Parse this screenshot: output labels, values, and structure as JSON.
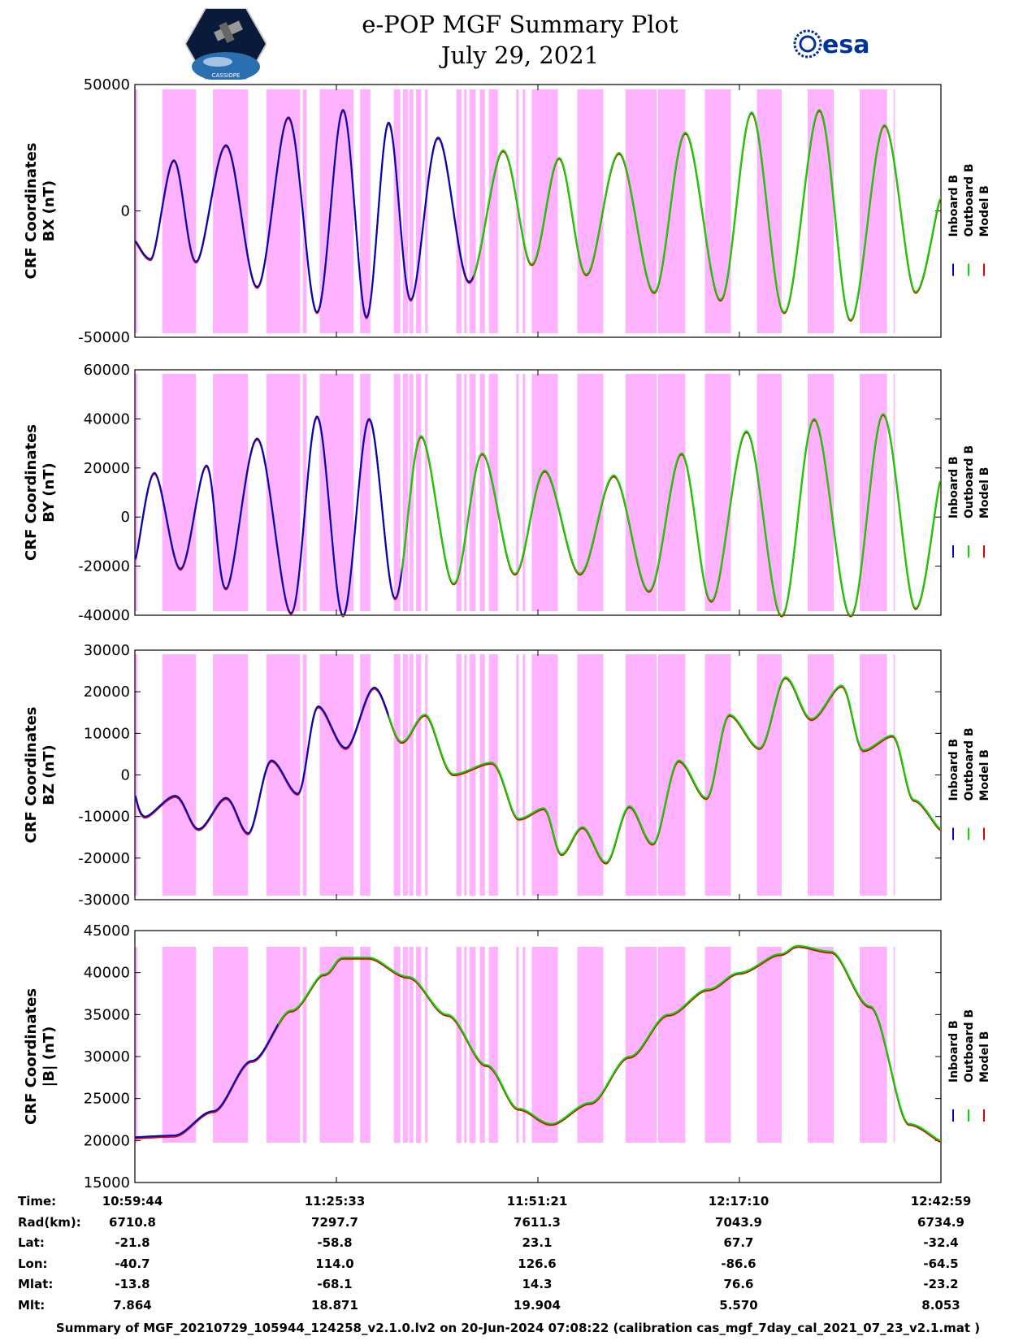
{
  "header": {
    "title_line1": "e-POP MGF Summary Plot",
    "title_line2": "July 29, 2021",
    "left_logo_text": "CASSIOPE",
    "right_logo_text": "esa"
  },
  "colors": {
    "inboard": "#0000cc",
    "outboard": "#00dd00",
    "model": "#dd0000",
    "shade": "#ffb3ff"
  },
  "legend": [
    "Inboard B",
    "Outboard B",
    "Model B"
  ],
  "chart_data": [
    {
      "type": "line",
      "title": "",
      "ylabel_line1": "CRF Coordinates",
      "ylabel_line2": "BX (nT)",
      "ylim": [
        -50000,
        50000
      ],
      "yticks": [
        -50000,
        0,
        50000
      ],
      "ytick_labels": [
        "-50000",
        "0",
        "50000"
      ],
      "xlim": [
        0,
        6194
      ],
      "inboard_end": 2600,
      "series": [
        {
          "name": "Outboard B",
          "x": [
            0,
            120,
            300,
            470,
            700,
            940,
            1180,
            1400,
            1600,
            1780,
            1950,
            2120,
            2330,
            2570,
            2830,
            3050,
            3260,
            3470,
            3720,
            3990,
            4230,
            4500,
            4740,
            4990,
            5260,
            5500,
            5760,
            6000,
            6194
          ],
          "y": [
            -12000,
            -19000,
            20000,
            -20000,
            26000,
            -30000,
            37000,
            -40000,
            40000,
            -42000,
            35000,
            -35000,
            29000,
            -28000,
            24000,
            -21000,
            21000,
            -25000,
            23000,
            -32000,
            31000,
            -35000,
            39000,
            -40000,
            40000,
            -43000,
            34000,
            -32000,
            5000
          ]
        }
      ]
    },
    {
      "type": "line",
      "title": "",
      "ylabel_line1": "CRF Coordinates",
      "ylabel_line2": "BY (nT)",
      "ylim": [
        -40000,
        60000
      ],
      "yticks": [
        -40000,
        -20000,
        0,
        20000,
        40000,
        60000
      ],
      "ytick_labels": [
        "-40000",
        "-20000",
        "0",
        "20000",
        "40000",
        "60000"
      ],
      "xlim": [
        0,
        6194
      ],
      "inboard_end": 2050,
      "series": [
        {
          "name": "Outboard B",
          "x": [
            0,
            150,
            350,
            550,
            700,
            940,
            1200,
            1400,
            1600,
            1800,
            2000,
            2200,
            2450,
            2670,
            2920,
            3150,
            3420,
            3680,
            3950,
            4200,
            4430,
            4700,
            4970,
            5220,
            5500,
            5750,
            6000,
            6194
          ],
          "y": [
            -17000,
            18000,
            -21000,
            21000,
            -29000,
            32000,
            -39000,
            41000,
            -40000,
            40000,
            -33000,
            33000,
            -27000,
            26000,
            -23000,
            19000,
            -23000,
            17000,
            -30000,
            26000,
            -34000,
            35000,
            -40000,
            40000,
            -40000,
            42000,
            -37000,
            15000
          ]
        }
      ]
    },
    {
      "type": "line",
      "title": "",
      "ylabel_line1": "CRF Coordinates",
      "ylabel_line2": "BZ (nT)",
      "ylim": [
        -30000,
        30000
      ],
      "yticks": [
        -30000,
        -20000,
        -10000,
        0,
        10000,
        20000,
        30000
      ],
      "ytick_labels": [
        "-30000",
        "-20000",
        "-10000",
        "0",
        "10000",
        "20000",
        "30000"
      ],
      "xlim": [
        0,
        6194
      ],
      "inboard_end": 1950,
      "series": [
        {
          "name": "Outboard B",
          "x": [
            0,
            80,
            310,
            490,
            700,
            870,
            1050,
            1250,
            1410,
            1620,
            1840,
            2050,
            2230,
            2450,
            2740,
            2950,
            3140,
            3280,
            3440,
            3620,
            3800,
            3980,
            4180,
            4390,
            4570,
            4800,
            5000,
            5200,
            5430,
            5600,
            5820,
            5990,
            6194
          ],
          "y": [
            -5000,
            -10000,
            -5000,
            -13000,
            -5500,
            -14000,
            3500,
            -4500,
            16500,
            6500,
            21000,
            8000,
            14500,
            200,
            3000,
            -10500,
            -8000,
            -19000,
            -12500,
            -21000,
            -7500,
            -16500,
            3500,
            -5500,
            14500,
            6500,
            23500,
            13500,
            21500,
            6000,
            9500,
            -6000,
            -13000
          ]
        }
      ]
    },
    {
      "type": "line",
      "title": "",
      "ylabel_line1": "CRF Coordinates",
      "ylabel_line2": "|B| (nT)",
      "ylim": [
        15000,
        45000
      ],
      "yticks": [
        15000,
        20000,
        25000,
        30000,
        35000,
        40000,
        45000
      ],
      "ytick_labels": [
        "15000",
        "20000",
        "25000",
        "30000",
        "35000",
        "40000",
        "45000"
      ],
      "xlim": [
        0,
        6194
      ],
      "inboard_end": 1100,
      "series": [
        {
          "name": "Outboard B",
          "x": [
            0,
            300,
            600,
            900,
            1200,
            1450,
            1600,
            1800,
            2100,
            2400,
            2700,
            2950,
            3200,
            3500,
            3800,
            4100,
            4400,
            4650,
            4950,
            5100,
            5350,
            5650,
            5950,
            6194
          ],
          "y": [
            20400,
            20600,
            23500,
            29500,
            35500,
            39800,
            41800,
            41800,
            39500,
            35000,
            29000,
            23800,
            22000,
            24500,
            30000,
            35000,
            38000,
            40000,
            42200,
            43200,
            42500,
            36000,
            22000,
            20000
          ]
        }
      ]
    }
  ],
  "time_axis": {
    "labels_header": [
      "Time:",
      "Rad(km):",
      "Lat:",
      "Lon:",
      "Mlat:",
      "Mlt:"
    ],
    "columns": [
      {
        "time": "10:59:44",
        "rad": "6710.8",
        "lat": "-21.8",
        "lon": "-40.7",
        "mlat": "-13.8",
        "mlt": "7.864"
      },
      {
        "time": "11:25:33",
        "rad": "7297.7",
        "lat": "-58.8",
        "lon": "114.0",
        "mlat": "-68.1",
        "mlt": "18.871"
      },
      {
        "time": "11:51:21",
        "rad": "7611.3",
        "lat": "23.1",
        "lon": "126.6",
        "mlat": "14.3",
        "mlt": "19.904"
      },
      {
        "time": "12:17:10",
        "rad": "7043.9",
        "lat": "67.7",
        "lon": "-86.6",
        "mlat": "76.6",
        "mlt": "5.570"
      },
      {
        "time": "12:42:59",
        "rad": "6734.9",
        "lat": "-32.4",
        "lon": "-64.5",
        "mlat": "-23.2",
        "mlt": "8.053"
      }
    ]
  },
  "shaded_intervals_s": [
    [
      0,
      20
    ],
    [
      210,
      470
    ],
    [
      600,
      870
    ],
    [
      1010,
      1270
    ],
    [
      1290,
      1320
    ],
    [
      1420,
      1680
    ],
    [
      1730,
      1810
    ],
    [
      1990,
      2040
    ],
    [
      2060,
      2100
    ],
    [
      2110,
      2140
    ],
    [
      2160,
      2200
    ],
    [
      2230,
      2250
    ],
    [
      2470,
      2510
    ],
    [
      2530,
      2550
    ],
    [
      2570,
      2620
    ],
    [
      2650,
      2690
    ],
    [
      2720,
      2790
    ],
    [
      2930,
      2950
    ],
    [
      2980,
      3000
    ],
    [
      3050,
      3250
    ],
    [
      3400,
      3600
    ],
    [
      3770,
      4000
    ],
    [
      4000,
      4010
    ],
    [
      4020,
      4230
    ],
    [
      4380,
      4580
    ],
    [
      4780,
      4970
    ],
    [
      5170,
      5370
    ],
    [
      5570,
      5780
    ],
    [
      5830,
      5840
    ]
  ],
  "footer": "Summary of MGF_20210729_105944_124258_v2.1.0.lv2 on 20-Jun-2024 07:08:22 (calibration cas_mgf_7day_cal_2021_07_23_v2.1.mat )"
}
